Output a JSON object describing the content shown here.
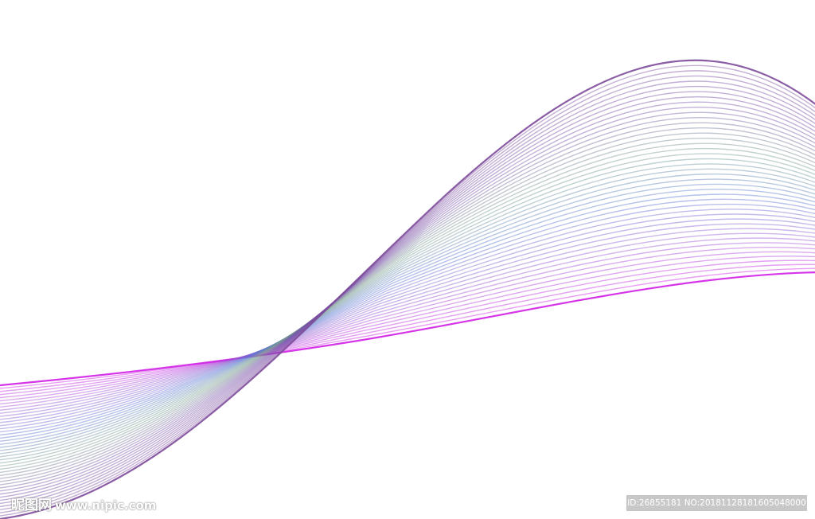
{
  "artwork": {
    "description_colors": {
      "top_left_line": "#d21ee6",
      "mid": "#5a78d2",
      "peak": "#7a4a9a",
      "soft": "#c8a0d8"
    },
    "line_count": 44
  },
  "watermark": {
    "logo_text": "昵图网",
    "site": "www.nipic.com",
    "id_text": "ID:26855181 NO:20181128181605048000"
  }
}
